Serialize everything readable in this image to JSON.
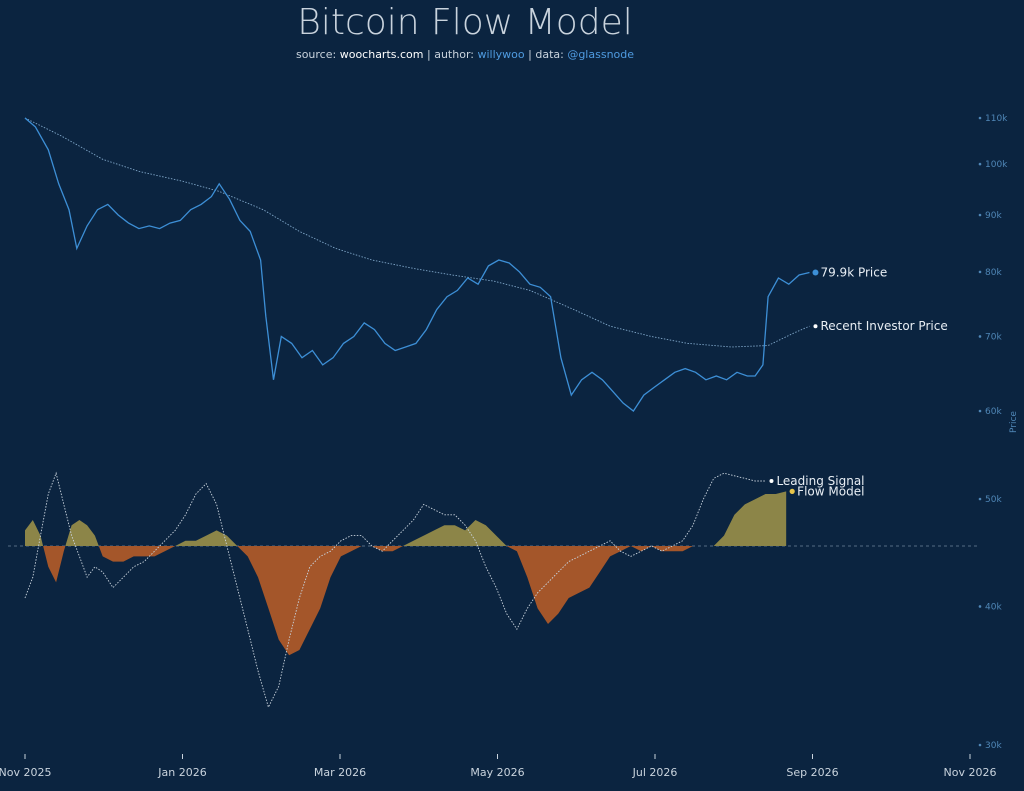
{
  "title": "Bitcoin Flow Model",
  "subtitle": {
    "source_label": "source:",
    "source": "woocharts.com",
    "author_label": "author:",
    "author": "willywoo",
    "data_label": "data:",
    "data": "@glassnode",
    "separator": "|"
  },
  "colors": {
    "background": "#0b2440",
    "price": "#3d8fd6",
    "investor": "#7fa6c8",
    "positive_fill": "#8c8548",
    "negative_fill": "#a4562a",
    "signal": "#c9d3dd",
    "flow_marker": "#e8c54a"
  },
  "chart_data": {
    "type": "line",
    "x_axis": {
      "ticks": [
        "Nov 2025",
        "Jan 2026",
        "Mar 2026",
        "May 2026",
        "Jul 2026",
        "Sep 2026",
        "Nov 2026"
      ],
      "range": [
        "2025-11-01",
        "2026-11-01"
      ]
    },
    "y_axis": {
      "label": "Price",
      "scale": "log",
      "ticks": [
        "110k",
        "100k",
        "90k",
        "80k",
        "70k",
        "60k",
        "50k",
        "40k",
        "30k"
      ],
      "tick_values": [
        110000,
        100000,
        90000,
        80000,
        70000,
        60000,
        50000,
        40000,
        30000
      ]
    },
    "series": [
      {
        "name": "Price",
        "type": "line",
        "points": [
          [
            "2025-11-01",
            110000
          ],
          [
            "2025-11-05",
            108000
          ],
          [
            "2025-11-10",
            103000
          ],
          [
            "2025-11-14",
            96000
          ],
          [
            "2025-11-18",
            91000
          ],
          [
            "2025-11-21",
            84000
          ],
          [
            "2025-11-25",
            88000
          ],
          [
            "2025-11-29",
            91000
          ],
          [
            "2025-12-03",
            92000
          ],
          [
            "2025-12-07",
            90000
          ],
          [
            "2025-12-11",
            88500
          ],
          [
            "2025-12-15",
            87500
          ],
          [
            "2025-12-19",
            88000
          ],
          [
            "2025-12-23",
            87500
          ],
          [
            "2025-12-27",
            88500
          ],
          [
            "2025-12-31",
            89000
          ],
          [
            "2026-01-04",
            91000
          ],
          [
            "2026-01-08",
            92000
          ],
          [
            "2026-01-12",
            93500
          ],
          [
            "2026-01-15",
            96000
          ],
          [
            "2026-01-19",
            93000
          ],
          [
            "2026-01-23",
            89000
          ],
          [
            "2026-01-27",
            87000
          ],
          [
            "2026-01-31",
            82000
          ],
          [
            "2026-02-02",
            73000
          ],
          [
            "2026-02-05",
            64000
          ],
          [
            "2026-02-08",
            70000
          ],
          [
            "2026-02-12",
            69000
          ],
          [
            "2026-02-16",
            67000
          ],
          [
            "2026-02-20",
            68000
          ],
          [
            "2026-02-24",
            66000
          ],
          [
            "2026-02-28",
            67000
          ],
          [
            "2026-03-04",
            69000
          ],
          [
            "2026-03-08",
            70000
          ],
          [
            "2026-03-12",
            72000
          ],
          [
            "2026-03-16",
            71000
          ],
          [
            "2026-03-20",
            69000
          ],
          [
            "2026-03-24",
            68000
          ],
          [
            "2026-03-28",
            68500
          ],
          [
            "2026-04-01",
            69000
          ],
          [
            "2026-04-05",
            71000
          ],
          [
            "2026-04-09",
            74000
          ],
          [
            "2026-04-13",
            76000
          ],
          [
            "2026-04-17",
            77000
          ],
          [
            "2026-04-21",
            79000
          ],
          [
            "2026-04-25",
            78000
          ],
          [
            "2026-04-29",
            81000
          ],
          [
            "2026-05-03",
            82000
          ],
          [
            "2026-05-07",
            81500
          ],
          [
            "2026-05-11",
            80000
          ],
          [
            "2026-05-15",
            78000
          ],
          [
            "2026-05-19",
            77500
          ],
          [
            "2026-05-23",
            76000
          ],
          [
            "2026-05-27",
            67000
          ],
          [
            "2026-05-31",
            62000
          ],
          [
            "2026-06-04",
            64000
          ],
          [
            "2026-06-08",
            65000
          ],
          [
            "2026-06-12",
            64000
          ],
          [
            "2026-06-16",
            62500
          ],
          [
            "2026-06-20",
            61000
          ],
          [
            "2026-06-24",
            60000
          ],
          [
            "2026-06-28",
            62000
          ],
          [
            "2026-07-02",
            63000
          ],
          [
            "2026-07-06",
            64000
          ],
          [
            "2026-07-10",
            65000
          ],
          [
            "2026-07-14",
            65500
          ],
          [
            "2026-07-18",
            65000
          ],
          [
            "2026-07-22",
            64000
          ],
          [
            "2026-07-26",
            64500
          ],
          [
            "2026-07-30",
            64000
          ],
          [
            "2026-08-03",
            65000
          ],
          [
            "2026-08-07",
            64500
          ],
          [
            "2026-08-10",
            64500
          ],
          [
            "2026-08-13",
            66000
          ],
          [
            "2026-08-15",
            76000
          ],
          [
            "2026-08-19",
            79000
          ],
          [
            "2026-08-23",
            78000
          ],
          [
            "2026-08-27",
            79500
          ],
          [
            "2026-08-31",
            79900
          ]
        ]
      },
      {
        "name": "Recent Investor Price",
        "type": "line",
        "points": [
          [
            "2025-11-01",
            110000
          ],
          [
            "2025-11-15",
            106000
          ],
          [
            "2025-12-01",
            101000
          ],
          [
            "2025-12-15",
            98500
          ],
          [
            "2026-01-01",
            96500
          ],
          [
            "2026-01-15",
            94500
          ],
          [
            "2026-02-01",
            91000
          ],
          [
            "2026-02-15",
            87000
          ],
          [
            "2026-03-01",
            84000
          ],
          [
            "2026-03-15",
            82000
          ],
          [
            "2026-04-01",
            80500
          ],
          [
            "2026-04-15",
            79500
          ],
          [
            "2026-05-01",
            78500
          ],
          [
            "2026-05-15",
            77000
          ],
          [
            "2026-06-01",
            74000
          ],
          [
            "2026-06-15",
            71500
          ],
          [
            "2026-07-01",
            70000
          ],
          [
            "2026-07-15",
            69000
          ],
          [
            "2026-08-01",
            68500
          ],
          [
            "2026-08-15",
            68700
          ],
          [
            "2026-08-25",
            70500
          ],
          [
            "2026-08-31",
            71500
          ]
        ]
      },
      {
        "name": "Flow Model",
        "type": "area",
        "baseline": "zero-line",
        "points": [
          [
            "2025-11-01",
            3
          ],
          [
            "2025-11-04",
            5
          ],
          [
            "2025-11-07",
            2
          ],
          [
            "2025-11-10",
            -4
          ],
          [
            "2025-11-13",
            -7
          ],
          [
            "2025-11-16",
            -1
          ],
          [
            "2025-11-19",
            4
          ],
          [
            "2025-11-22",
            5
          ],
          [
            "2025-11-25",
            4
          ],
          [
            "2025-11-28",
            2
          ],
          [
            "2025-12-01",
            -2
          ],
          [
            "2025-12-05",
            -3
          ],
          [
            "2025-12-09",
            -3
          ],
          [
            "2025-12-13",
            -2
          ],
          [
            "2025-12-17",
            -2
          ],
          [
            "2025-12-21",
            -2
          ],
          [
            "2025-12-25",
            -1
          ],
          [
            "2025-12-29",
            0
          ],
          [
            "2026-01-02",
            1
          ],
          [
            "2026-01-06",
            1
          ],
          [
            "2026-01-10",
            2
          ],
          [
            "2026-01-14",
            3
          ],
          [
            "2026-01-18",
            2
          ],
          [
            "2026-01-22",
            0
          ],
          [
            "2026-01-26",
            -2
          ],
          [
            "2026-01-30",
            -6
          ],
          [
            "2026-02-03",
            -12
          ],
          [
            "2026-02-07",
            -18
          ],
          [
            "2026-02-11",
            -21
          ],
          [
            "2026-02-15",
            -20
          ],
          [
            "2026-02-19",
            -16
          ],
          [
            "2026-02-23",
            -12
          ],
          [
            "2026-02-27",
            -6
          ],
          [
            "2026-03-03",
            -2
          ],
          [
            "2026-03-07",
            -1
          ],
          [
            "2026-03-11",
            0
          ],
          [
            "2026-03-15",
            0
          ],
          [
            "2026-03-19",
            -1
          ],
          [
            "2026-03-23",
            -1
          ],
          [
            "2026-03-27",
            0
          ],
          [
            "2026-03-31",
            1
          ],
          [
            "2026-04-04",
            2
          ],
          [
            "2026-04-08",
            3
          ],
          [
            "2026-04-12",
            4
          ],
          [
            "2026-04-16",
            4
          ],
          [
            "2026-04-20",
            3
          ],
          [
            "2026-04-24",
            5
          ],
          [
            "2026-04-28",
            4
          ],
          [
            "2026-05-02",
            2
          ],
          [
            "2026-05-06",
            0
          ],
          [
            "2026-05-10",
            -1
          ],
          [
            "2026-05-14",
            -6
          ],
          [
            "2026-05-18",
            -12
          ],
          [
            "2026-05-22",
            -15
          ],
          [
            "2026-05-26",
            -13
          ],
          [
            "2026-05-30",
            -10
          ],
          [
            "2026-06-03",
            -9
          ],
          [
            "2026-06-07",
            -8
          ],
          [
            "2026-06-11",
            -5
          ],
          [
            "2026-06-15",
            -2
          ],
          [
            "2026-06-19",
            -1
          ],
          [
            "2026-06-23",
            0
          ],
          [
            "2026-06-27",
            -1
          ],
          [
            "2026-07-01",
            0
          ],
          [
            "2026-07-05",
            -1
          ],
          [
            "2026-07-09",
            -1
          ],
          [
            "2026-07-13",
            -1
          ],
          [
            "2026-07-17",
            0
          ],
          [
            "2026-07-21",
            0
          ],
          [
            "2026-07-25",
            0
          ],
          [
            "2026-07-29",
            2
          ],
          [
            "2026-08-02",
            6
          ],
          [
            "2026-08-06",
            8
          ],
          [
            "2026-08-10",
            9
          ],
          [
            "2026-08-14",
            10
          ],
          [
            "2026-08-18",
            10
          ],
          [
            "2026-08-22",
            10.5
          ]
        ]
      },
      {
        "name": "Leading Signal",
        "type": "line",
        "style": "dotted",
        "points": [
          [
            "2025-11-01",
            -10
          ],
          [
            "2025-11-04",
            -6
          ],
          [
            "2025-11-07",
            2
          ],
          [
            "2025-11-10",
            10
          ],
          [
            "2025-11-13",
            14
          ],
          [
            "2025-11-16",
            8
          ],
          [
            "2025-11-19",
            2
          ],
          [
            "2025-11-22",
            -2
          ],
          [
            "2025-11-25",
            -6
          ],
          [
            "2025-11-28",
            -4
          ],
          [
            "2025-12-01",
            -5
          ],
          [
            "2025-12-05",
            -8
          ],
          [
            "2025-12-09",
            -6
          ],
          [
            "2025-12-13",
            -4
          ],
          [
            "2025-12-17",
            -3
          ],
          [
            "2025-12-21",
            -1
          ],
          [
            "2025-12-25",
            1
          ],
          [
            "2025-12-29",
            3
          ],
          [
            "2026-01-02",
            6
          ],
          [
            "2026-01-06",
            10
          ],
          [
            "2026-01-10",
            12
          ],
          [
            "2026-01-14",
            8
          ],
          [
            "2026-01-18",
            0
          ],
          [
            "2026-01-22",
            -8
          ],
          [
            "2026-01-26",
            -16
          ],
          [
            "2026-01-30",
            -24
          ],
          [
            "2026-02-03",
            -31
          ],
          [
            "2026-02-07",
            -27
          ],
          [
            "2026-02-11",
            -18
          ],
          [
            "2026-02-15",
            -10
          ],
          [
            "2026-02-19",
            -4
          ],
          [
            "2026-02-23",
            -2
          ],
          [
            "2026-02-27",
            -1
          ],
          [
            "2026-03-03",
            1
          ],
          [
            "2026-03-07",
            2
          ],
          [
            "2026-03-11",
            2
          ],
          [
            "2026-03-15",
            0
          ],
          [
            "2026-03-19",
            -1
          ],
          [
            "2026-03-23",
            1
          ],
          [
            "2026-03-27",
            3
          ],
          [
            "2026-03-31",
            5
          ],
          [
            "2026-04-04",
            8
          ],
          [
            "2026-04-08",
            7
          ],
          [
            "2026-04-12",
            6
          ],
          [
            "2026-04-16",
            6
          ],
          [
            "2026-04-20",
            4
          ],
          [
            "2026-04-24",
            1
          ],
          [
            "2026-04-28",
            -4
          ],
          [
            "2026-05-02",
            -8
          ],
          [
            "2026-05-06",
            -13
          ],
          [
            "2026-05-10",
            -16
          ],
          [
            "2026-05-14",
            -12
          ],
          [
            "2026-05-18",
            -9
          ],
          [
            "2026-05-22",
            -7
          ],
          [
            "2026-05-26",
            -5
          ],
          [
            "2026-05-30",
            -3
          ],
          [
            "2026-06-03",
            -2
          ],
          [
            "2026-06-07",
            -1
          ],
          [
            "2026-06-11",
            0
          ],
          [
            "2026-06-15",
            1
          ],
          [
            "2026-06-19",
            -1
          ],
          [
            "2026-06-23",
            -2
          ],
          [
            "2026-06-27",
            -1
          ],
          [
            "2026-07-01",
            0
          ],
          [
            "2026-07-05",
            -1
          ],
          [
            "2026-07-09",
            0
          ],
          [
            "2026-07-13",
            1
          ],
          [
            "2026-07-17",
            4
          ],
          [
            "2026-07-21",
            9
          ],
          [
            "2026-07-25",
            13
          ],
          [
            "2026-07-29",
            14
          ],
          [
            "2026-08-02",
            13.5
          ],
          [
            "2026-08-06",
            13
          ],
          [
            "2026-08-10",
            12.5
          ],
          [
            "2026-08-14",
            12.5
          ]
        ]
      }
    ],
    "annotations": [
      {
        "series": "Price",
        "text": "79.9k Price"
      },
      {
        "series": "Recent Investor Price",
        "text": "Recent Investor Price"
      },
      {
        "series": "Leading Signal",
        "text": "Leading Signal"
      },
      {
        "series": "Flow Model",
        "text": "Flow Model"
      }
    ],
    "zero_line": "dashed",
    "grid": false,
    "legend": "none"
  }
}
